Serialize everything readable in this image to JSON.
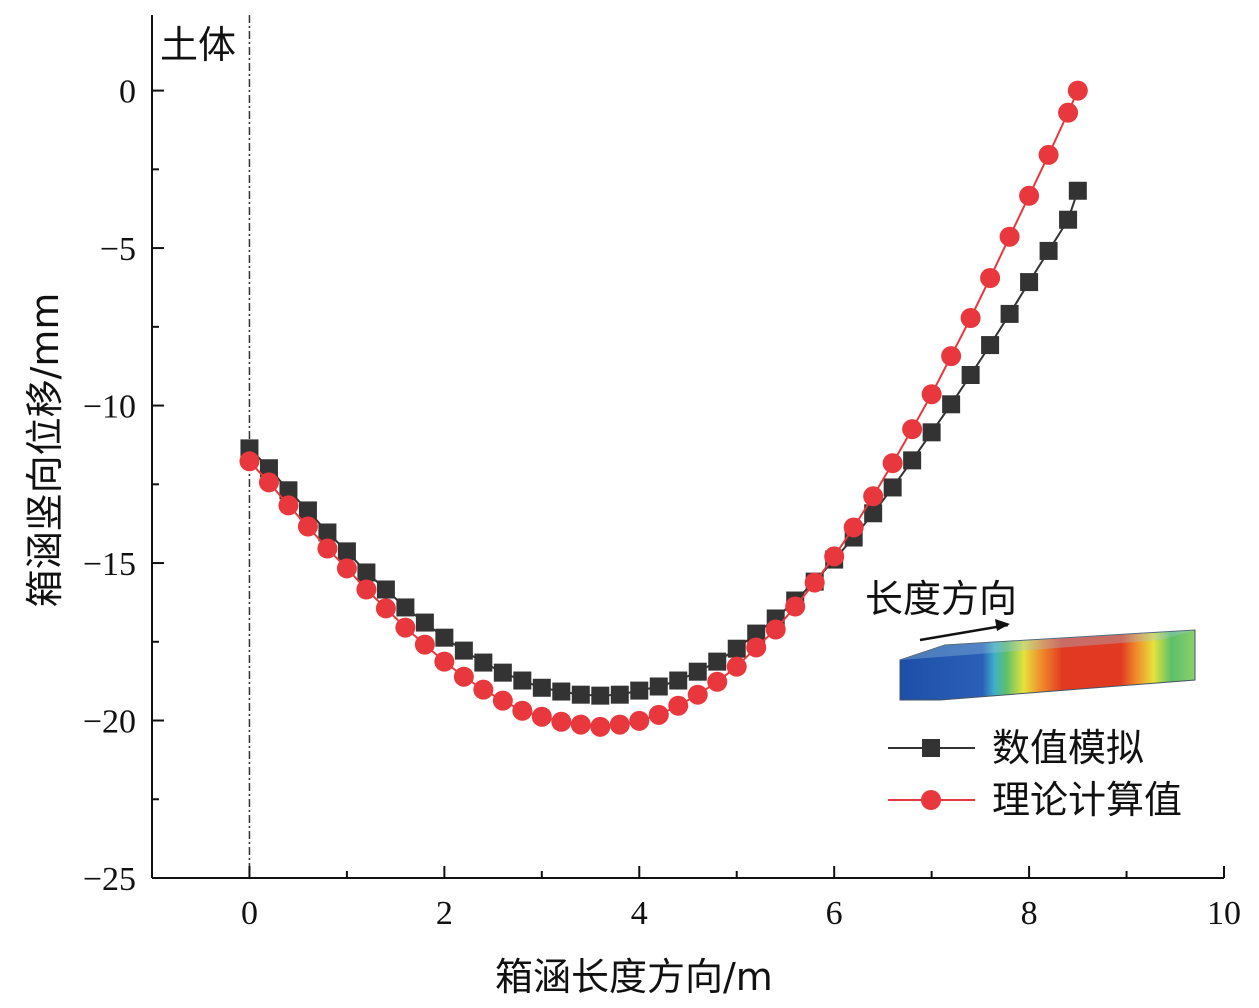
{
  "chart_data": {
    "type": "line",
    "title": "",
    "xlabel": "箱涵长度方向/m",
    "ylabel": "箱涵竖向位移/mm",
    "xlim": [
      -1,
      10
    ],
    "ylim": [
      -25,
      2.4
    ],
    "xticks": [
      "0",
      "2",
      "4",
      "6",
      "8",
      "10"
    ],
    "yticks": [
      "0",
      "−5",
      "−10",
      "−15",
      "−20",
      "−25"
    ],
    "grid": false,
    "legend_position": "bottom-right",
    "annotations": {
      "soil": "土体",
      "direction": "长度方向"
    },
    "x": [
      0,
      0.2,
      0.4,
      0.6,
      0.8,
      1.0,
      1.2,
      1.4,
      1.6,
      1.8,
      2.0,
      2.2,
      2.4,
      2.6,
      2.8,
      3.0,
      3.2,
      3.4,
      3.6,
      3.8,
      4.0,
      4.2,
      4.4,
      4.6,
      4.8,
      5.0,
      5.2,
      5.4,
      5.6,
      5.8,
      6.0,
      6.2,
      6.4,
      6.6,
      6.8,
      7.0,
      7.2,
      7.4,
      7.6,
      7.8,
      8.0,
      8.2,
      8.4,
      8.5
    ],
    "series": [
      {
        "name": "数值模拟",
        "color": "#333333",
        "marker": "square",
        "values": [
          -11.36,
          -11.99,
          -12.69,
          -13.33,
          -14.03,
          -14.63,
          -15.3,
          -15.84,
          -16.41,
          -16.89,
          -17.37,
          -17.78,
          -18.16,
          -18.48,
          -18.73,
          -18.96,
          -19.08,
          -19.18,
          -19.21,
          -19.18,
          -19.05,
          -18.92,
          -18.73,
          -18.45,
          -18.13,
          -17.72,
          -17.24,
          -16.76,
          -16.19,
          -15.59,
          -14.89,
          -14.19,
          -13.42,
          -12.6,
          -11.74,
          -10.85,
          -9.96,
          -9.03,
          -8.08,
          -7.09,
          -6.08,
          -5.09,
          -4.1,
          -3.18
        ]
      },
      {
        "name": "理论计算值",
        "color": "#e8383d",
        "marker": "circle",
        "values": [
          -11.77,
          -12.44,
          -13.17,
          -13.84,
          -14.54,
          -15.17,
          -15.84,
          -16.44,
          -17.05,
          -17.59,
          -18.13,
          -18.61,
          -19.02,
          -19.37,
          -19.69,
          -19.88,
          -20.04,
          -20.13,
          -20.2,
          -20.13,
          -20.01,
          -19.82,
          -19.53,
          -19.18,
          -18.77,
          -18.29,
          -17.68,
          -17.11,
          -16.38,
          -15.62,
          -14.79,
          -13.87,
          -12.88,
          -11.83,
          -10.75,
          -9.64,
          -8.43,
          -7.22,
          -5.95,
          -4.64,
          -3.34,
          -2.04,
          -0.7,
          0.0
        ]
      }
    ]
  }
}
